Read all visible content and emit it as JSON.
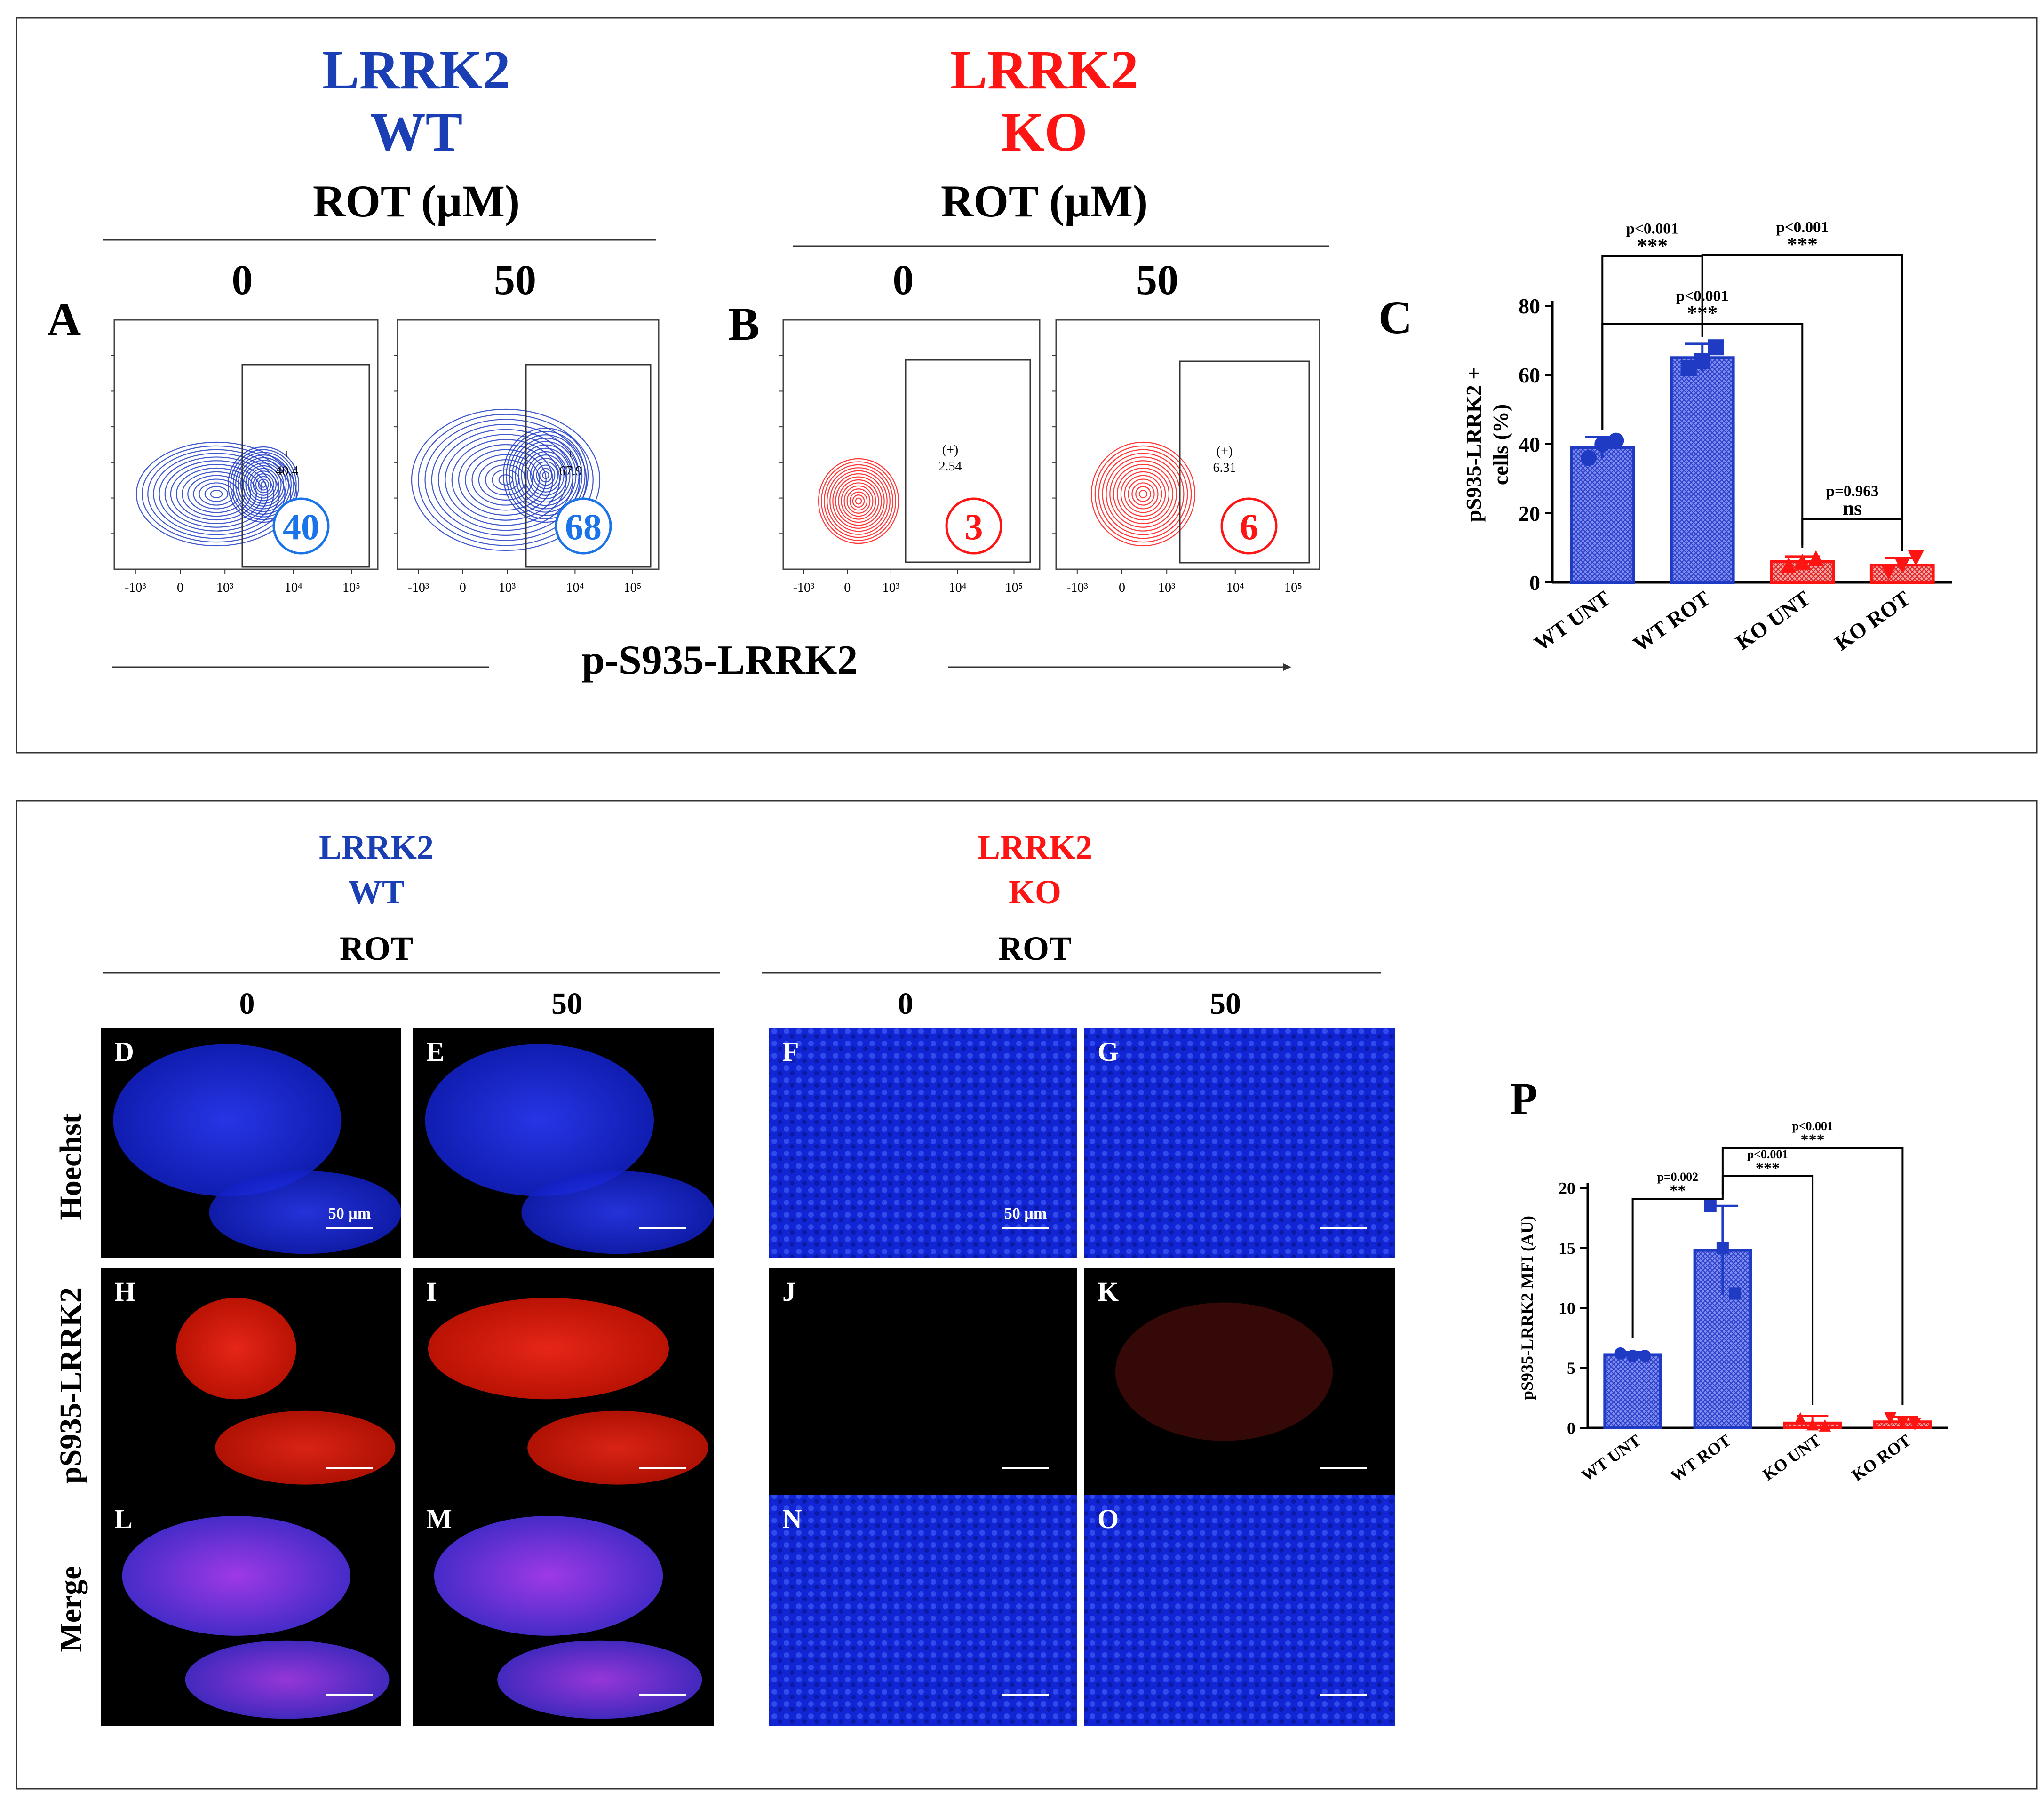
{
  "colors": {
    "wt": "#1f3bc4",
    "ko": "#ff1414",
    "wt_title": "#1a3fb5",
    "wt_circle": "#1a73e8",
    "bar_wt_fill": "#5a6ee6",
    "bar_ko_fill": "#f0a0a0"
  },
  "top_panel": {
    "wt_title_line1": "LRRK2",
    "wt_title_line2": "WT",
    "ko_title_line1": "LRRK2",
    "ko_title_line2": "KO",
    "rot_header_wt": "ROT (µM)",
    "rot_header_ko": "ROT (µM)",
    "dose_0_wt": "0",
    "dose_50_wt": "50",
    "dose_0_ko": "0",
    "dose_50_ko": "50",
    "label_a": "A",
    "label_b": "B",
    "label_c": "C",
    "x_axis_caption": "p-S935-LRRK2",
    "flow_ticks": [
      "-10³",
      "0",
      "10³",
      "10⁴",
      "10⁵"
    ],
    "flow_plots": [
      {
        "gate_sign": "+",
        "gate_value": "40.4",
        "circle_value": "40"
      },
      {
        "gate_sign": "+",
        "gate_value": "67.9",
        "circle_value": "68"
      },
      {
        "gate_sign": "(+)",
        "gate_value": "2.54",
        "circle_value": "3"
      },
      {
        "gate_sign": "(+)",
        "gate_value": "6.31",
        "circle_value": "6"
      }
    ]
  },
  "bottom_panel": {
    "wt_title_line1": "LRRK2",
    "wt_title_line2": "WT",
    "ko_title_line1": "LRRK2",
    "ko_title_line2": "KO",
    "rot_header_wt": "ROT",
    "rot_header_ko": "ROT",
    "dose_0_wt": "0",
    "dose_50_wt": "50",
    "dose_0_ko": "0",
    "dose_50_ko": "50",
    "row_labels": [
      "Hoechst",
      "pS935-LRRK2",
      "Merge"
    ],
    "panel_letters": [
      "D",
      "E",
      "F",
      "G",
      "H",
      "I",
      "J",
      "K",
      "L",
      "M",
      "N",
      "O"
    ],
    "scale_label_d": "50 µm",
    "scale_label_f": "50 µm",
    "label_p": "P"
  },
  "chart_data": [
    {
      "type": "bar",
      "panel": "C",
      "categories": [
        "WT UNT",
        "WT ROT",
        "KO UNT",
        "KO ROT"
      ],
      "values": [
        39,
        65,
        6,
        5
      ],
      "errors": [
        3,
        4,
        1.5,
        2
      ],
      "points": [
        [
          36,
          40,
          41
        ],
        [
          62,
          64,
          68
        ],
        [
          5,
          6,
          7
        ],
        [
          3,
          5,
          7
        ]
      ],
      "ylabel_line1": "pS935-LRRK2 +",
      "ylabel_line2": "cells (%)",
      "ylim": [
        0,
        80
      ],
      "yticks": [
        0,
        20,
        40,
        60,
        80
      ],
      "grid": false,
      "annotations": [
        {
          "from": 0,
          "to": 1,
          "p": "p<0.001",
          "stars": "***"
        },
        {
          "from": 0,
          "to": 2,
          "p": "p<0.001",
          "stars": "***"
        },
        {
          "from": 1,
          "to": 3,
          "p": "p<0.001",
          "stars": "***"
        },
        {
          "from": 2,
          "to": 3,
          "p": "p=0.963",
          "stars": "ns"
        }
      ]
    },
    {
      "type": "bar",
      "panel": "P",
      "categories": [
        "WT UNT",
        "WT ROT",
        "KO UNT",
        "KO ROT"
      ],
      "values": [
        6.1,
        14.8,
        0.4,
        0.5
      ],
      "errors": [
        0.2,
        3.7,
        0.6,
        0.4
      ],
      "points": [
        [
          6.2,
          6.0,
          6.0
        ],
        [
          18.5,
          15.0,
          11.2
        ],
        [
          0.8,
          0.3,
          0.2
        ],
        [
          0.8,
          0.4,
          0.3
        ]
      ],
      "ylabel": "pS935-LRRK2 MFI (AU)",
      "ylim": [
        0,
        20
      ],
      "yticks": [
        0,
        5,
        10,
        15,
        20
      ],
      "grid": false,
      "annotations": [
        {
          "from": 0,
          "to": 1,
          "p": "p=0.002",
          "stars": "**"
        },
        {
          "from": 1,
          "to": 2,
          "p": "p<0.001",
          "stars": "***"
        },
        {
          "from": 1,
          "to": 3,
          "p": "p<0.001",
          "stars": "***"
        }
      ]
    }
  ]
}
